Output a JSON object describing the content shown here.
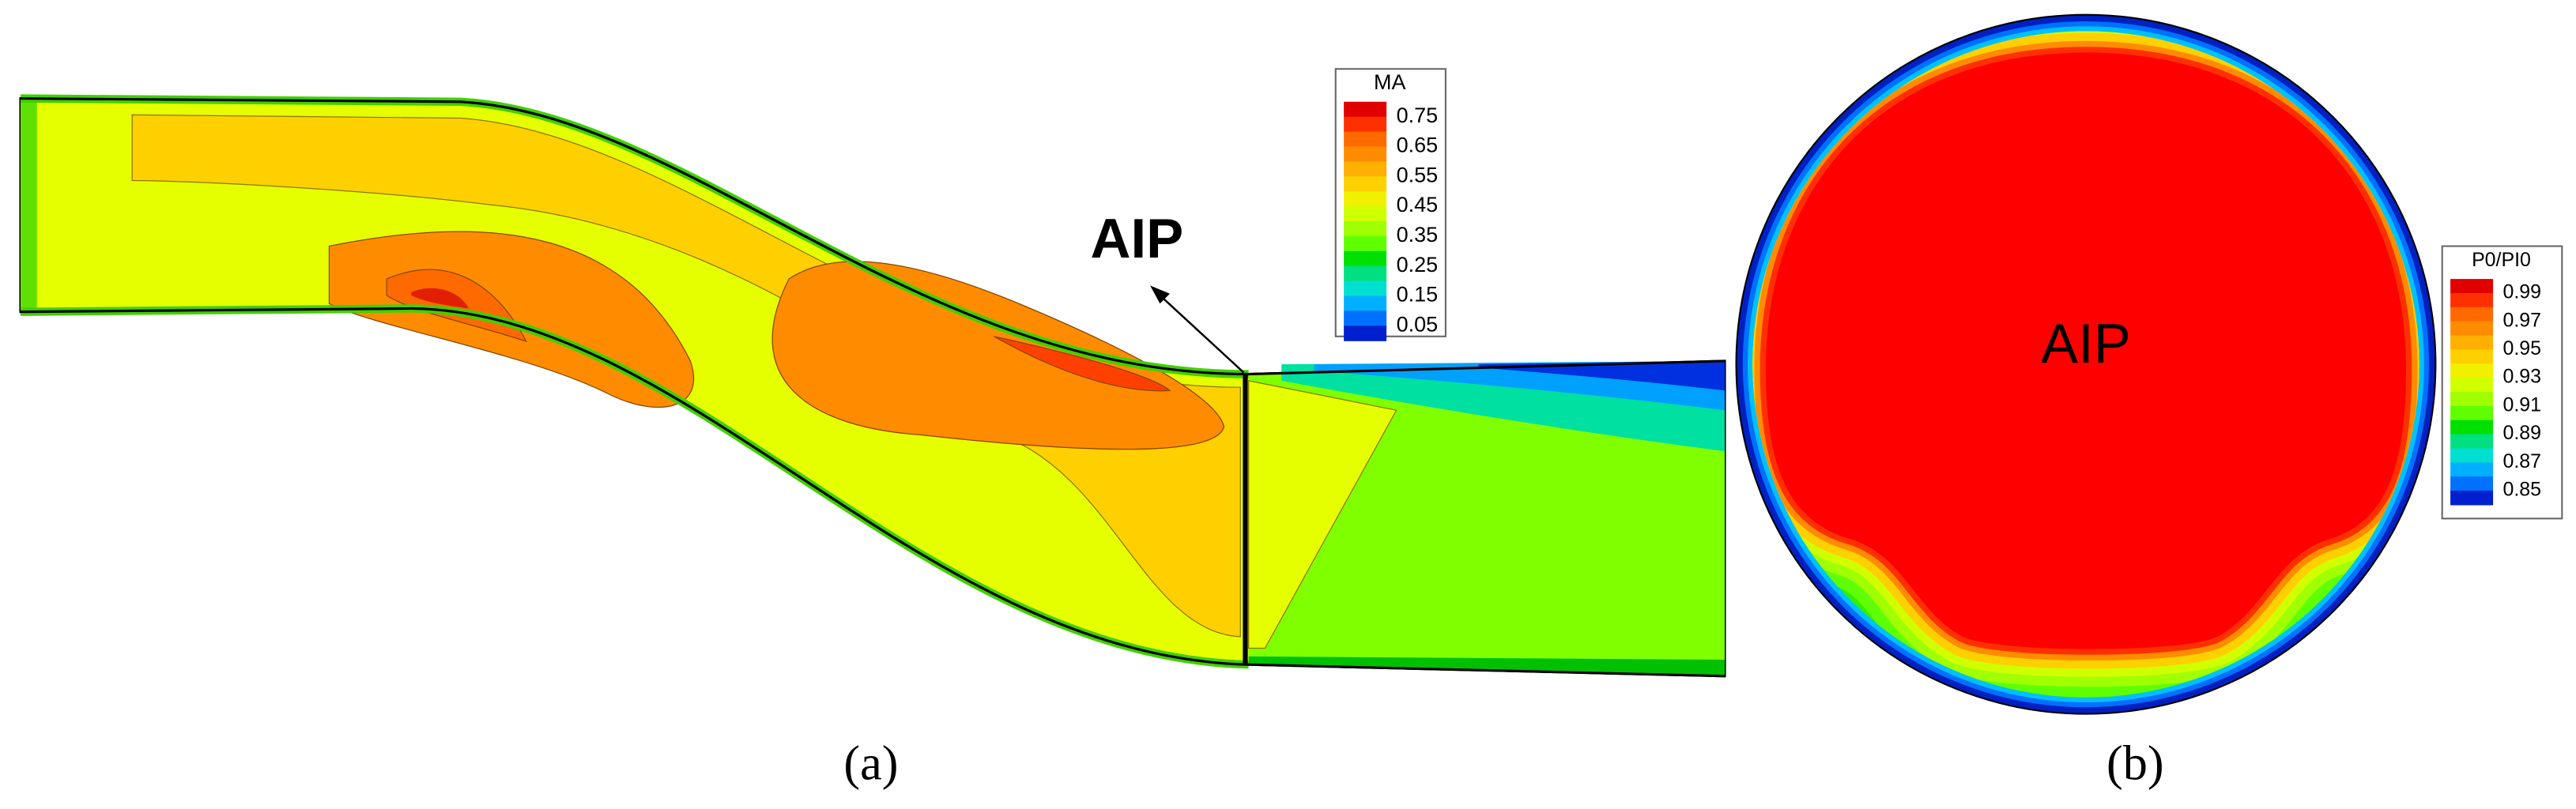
{
  "panel_a": {
    "annotation": "AIP",
    "legend": {
      "title": "MA",
      "labels": [
        0.75,
        0.65,
        0.55,
        0.45,
        0.35,
        0.25,
        0.15,
        0.05
      ]
    },
    "caption": "(a)"
  },
  "panel_b": {
    "annotation": "AIP",
    "legend": {
      "title": "P0/PI0",
      "labels": [
        0.99,
        0.97,
        0.95,
        0.93,
        0.91,
        0.89,
        0.87,
        0.85
      ]
    },
    "caption": "(b)"
  }
}
